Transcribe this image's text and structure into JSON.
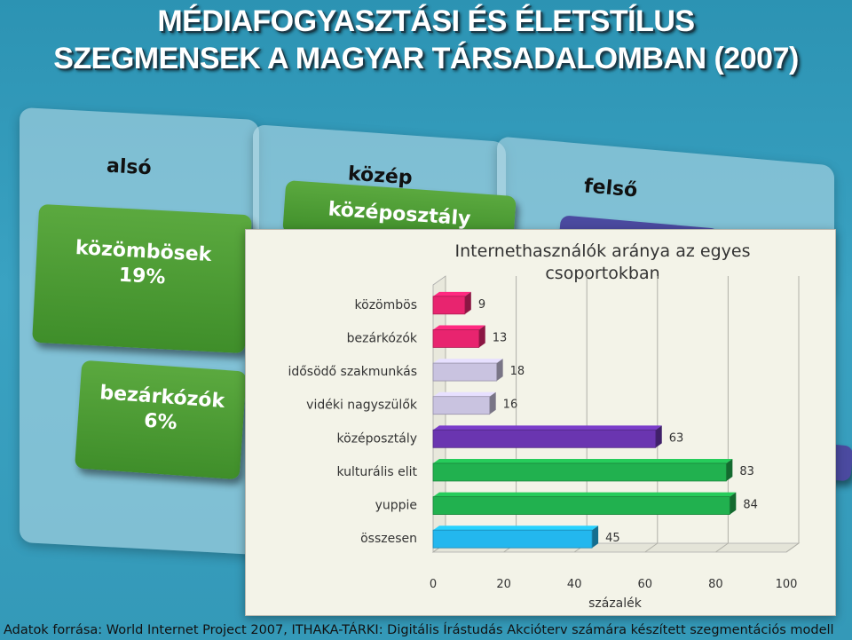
{
  "title": {
    "line1": "MÉDIAFOGYASZTÁSI ÉS ÉLETSTÍLUS",
    "line2": "SZEGMENSEK A MAGYAR TÁRSADALOMBAN (2007)"
  },
  "tiers": {
    "also": "alsó",
    "kozep": "közép",
    "felso": "felső"
  },
  "segments": {
    "kozombosek": {
      "name": "közömbösek",
      "pct": "19%"
    },
    "bezarkozok": {
      "name": "bezárkózók",
      "pct": "6%"
    },
    "kozeposztaly": "középosztály"
  },
  "footer": "Adatok forrása: World Internet Project 2007, ITHAKA-TÁRKI: Digitális Írástudás Akcióterv számára készített szegmentációs modell",
  "colors": {
    "magenta": "#e8246f",
    "lavender": "#c9c3e0",
    "purple": "#6a35b0",
    "green": "#21b14f",
    "cyan": "#23b7ee"
  },
  "chart_data": {
    "type": "bar",
    "orientation": "horizontal",
    "title": "Internethasználók aránya az egyes csoportokban",
    "xlabel": "százalék",
    "ylabel": "",
    "xlim": [
      0,
      100
    ],
    "xticks": [
      "0",
      "20",
      "40",
      "60",
      "80",
      "100"
    ],
    "grid": "vertical",
    "categories": [
      "közömbös",
      "bezárkózók",
      "idősödő szakmunkás",
      "vidéki nagyszülők",
      "középosztály",
      "kulturális elit",
      "yuppie",
      "összesen"
    ],
    "values": [
      9,
      13,
      18,
      16,
      63,
      83,
      84,
      45
    ],
    "bar_colors": [
      "#e8246f",
      "#e8246f",
      "#c9c3e0",
      "#c9c3e0",
      "#6a35b0",
      "#21b14f",
      "#21b14f",
      "#23b7ee"
    ]
  }
}
